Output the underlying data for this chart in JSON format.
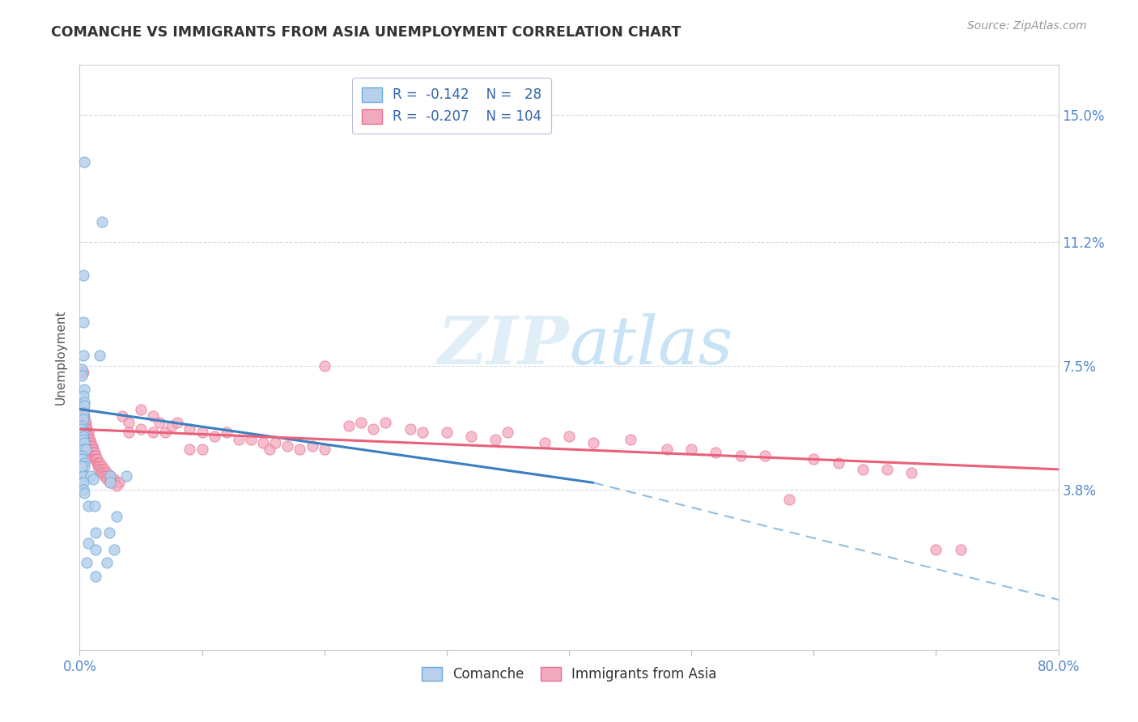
{
  "title": "COMANCHE VS IMMIGRANTS FROM ASIA UNEMPLOYMENT CORRELATION CHART",
  "source": "Source: ZipAtlas.com",
  "ylabel": "Unemployment",
  "ytick_labels": [
    "15.0%",
    "11.2%",
    "7.5%",
    "3.8%"
  ],
  "ytick_values": [
    0.15,
    0.112,
    0.075,
    0.038
  ],
  "xmin": 0.0,
  "xmax": 0.8,
  "ymin": -0.01,
  "ymax": 0.165,
  "comanche_color": "#b8d0eb",
  "immigrants_color": "#f2aabe",
  "trendline_blue": "#3a7fc1",
  "trendline_pink": "#e8607a",
  "trendline_blue_dashed": "#90bfe0",
  "blue_line_x_start": 0.0,
  "blue_line_x_solid_end": 0.42,
  "blue_line_x_end": 0.8,
  "blue_line_y_start": 0.062,
  "blue_line_y_solid_end": 0.04,
  "blue_line_y_end": 0.005,
  "pink_line_x_start": 0.0,
  "pink_line_x_end": 0.8,
  "pink_line_y_start": 0.056,
  "pink_line_y_end": 0.044,
  "comanche_points": [
    [
      0.004,
      0.136
    ],
    [
      0.018,
      0.118
    ],
    [
      0.003,
      0.102
    ],
    [
      0.003,
      0.088
    ],
    [
      0.003,
      0.078
    ],
    [
      0.016,
      0.078
    ],
    [
      0.002,
      0.074
    ],
    [
      0.002,
      0.072
    ],
    [
      0.004,
      0.068
    ],
    [
      0.003,
      0.066
    ],
    [
      0.004,
      0.064
    ],
    [
      0.004,
      0.063
    ],
    [
      0.003,
      0.061
    ],
    [
      0.003,
      0.059
    ],
    [
      0.002,
      0.057
    ],
    [
      0.002,
      0.056
    ],
    [
      0.003,
      0.055
    ],
    [
      0.003,
      0.054
    ],
    [
      0.003,
      0.053
    ],
    [
      0.004,
      0.052
    ],
    [
      0.003,
      0.05
    ],
    [
      0.005,
      0.05
    ],
    [
      0.002,
      0.048
    ],
    [
      0.002,
      0.047
    ],
    [
      0.004,
      0.046
    ],
    [
      0.004,
      0.045
    ],
    [
      0.002,
      0.043
    ],
    [
      0.003,
      0.042
    ],
    [
      0.009,
      0.042
    ],
    [
      0.011,
      0.041
    ],
    [
      0.002,
      0.04
    ],
    [
      0.003,
      0.04
    ],
    [
      0.003,
      0.038
    ],
    [
      0.004,
      0.037
    ],
    [
      0.025,
      0.042
    ],
    [
      0.025,
      0.04
    ],
    [
      0.03,
      0.03
    ],
    [
      0.007,
      0.022
    ],
    [
      0.013,
      0.02
    ],
    [
      0.028,
      0.02
    ],
    [
      0.013,
      0.012
    ],
    [
      0.038,
      0.042
    ],
    [
      0.002,
      0.045
    ],
    [
      0.007,
      0.033
    ],
    [
      0.012,
      0.033
    ],
    [
      0.013,
      0.025
    ],
    [
      0.024,
      0.025
    ],
    [
      0.006,
      0.016
    ],
    [
      0.022,
      0.016
    ]
  ],
  "immigrants_points": [
    [
      0.002,
      0.073
    ],
    [
      0.003,
      0.073
    ],
    [
      0.001,
      0.063
    ],
    [
      0.002,
      0.062
    ],
    [
      0.003,
      0.062
    ],
    [
      0.003,
      0.061
    ],
    [
      0.003,
      0.06
    ],
    [
      0.004,
      0.06
    ],
    [
      0.002,
      0.059
    ],
    [
      0.003,
      0.059
    ],
    [
      0.004,
      0.059
    ],
    [
      0.004,
      0.058
    ],
    [
      0.005,
      0.058
    ],
    [
      0.003,
      0.057
    ],
    [
      0.004,
      0.057
    ],
    [
      0.005,
      0.057
    ],
    [
      0.004,
      0.056
    ],
    [
      0.005,
      0.056
    ],
    [
      0.006,
      0.056
    ],
    [
      0.005,
      0.055
    ],
    [
      0.006,
      0.055
    ],
    [
      0.007,
      0.055
    ],
    [
      0.005,
      0.054
    ],
    [
      0.006,
      0.054
    ],
    [
      0.007,
      0.054
    ],
    [
      0.006,
      0.053
    ],
    [
      0.007,
      0.053
    ],
    [
      0.008,
      0.053
    ],
    [
      0.007,
      0.052
    ],
    [
      0.008,
      0.052
    ],
    [
      0.009,
      0.052
    ],
    [
      0.008,
      0.051
    ],
    [
      0.009,
      0.051
    ],
    [
      0.01,
      0.051
    ],
    [
      0.009,
      0.05
    ],
    [
      0.01,
      0.05
    ],
    [
      0.011,
      0.05
    ],
    [
      0.01,
      0.049
    ],
    [
      0.011,
      0.049
    ],
    [
      0.012,
      0.049
    ],
    [
      0.011,
      0.048
    ],
    [
      0.012,
      0.048
    ],
    [
      0.013,
      0.048
    ],
    [
      0.012,
      0.047
    ],
    [
      0.013,
      0.047
    ],
    [
      0.014,
      0.047
    ],
    [
      0.014,
      0.046
    ],
    [
      0.015,
      0.046
    ],
    [
      0.016,
      0.046
    ],
    [
      0.015,
      0.045
    ],
    [
      0.016,
      0.045
    ],
    [
      0.018,
      0.045
    ],
    [
      0.016,
      0.044
    ],
    [
      0.018,
      0.044
    ],
    [
      0.02,
      0.044
    ],
    [
      0.018,
      0.043
    ],
    [
      0.02,
      0.043
    ],
    [
      0.022,
      0.043
    ],
    [
      0.02,
      0.042
    ],
    [
      0.022,
      0.042
    ],
    [
      0.025,
      0.042
    ],
    [
      0.022,
      0.041
    ],
    [
      0.025,
      0.041
    ],
    [
      0.028,
      0.041
    ],
    [
      0.025,
      0.04
    ],
    [
      0.028,
      0.04
    ],
    [
      0.032,
      0.04
    ],
    [
      0.03,
      0.039
    ],
    [
      0.035,
      0.06
    ],
    [
      0.04,
      0.058
    ],
    [
      0.04,
      0.055
    ],
    [
      0.05,
      0.062
    ],
    [
      0.05,
      0.056
    ],
    [
      0.06,
      0.06
    ],
    [
      0.06,
      0.055
    ],
    [
      0.065,
      0.058
    ],
    [
      0.07,
      0.055
    ],
    [
      0.075,
      0.057
    ],
    [
      0.08,
      0.058
    ],
    [
      0.09,
      0.056
    ],
    [
      0.09,
      0.05
    ],
    [
      0.1,
      0.055
    ],
    [
      0.1,
      0.05
    ],
    [
      0.11,
      0.054
    ],
    [
      0.12,
      0.055
    ],
    [
      0.13,
      0.053
    ],
    [
      0.14,
      0.053
    ],
    [
      0.15,
      0.052
    ],
    [
      0.155,
      0.05
    ],
    [
      0.16,
      0.052
    ],
    [
      0.17,
      0.051
    ],
    [
      0.18,
      0.05
    ],
    [
      0.19,
      0.051
    ],
    [
      0.2,
      0.05
    ],
    [
      0.2,
      0.075
    ],
    [
      0.22,
      0.057
    ],
    [
      0.23,
      0.058
    ],
    [
      0.24,
      0.056
    ],
    [
      0.25,
      0.058
    ],
    [
      0.27,
      0.056
    ],
    [
      0.28,
      0.055
    ],
    [
      0.3,
      0.055
    ],
    [
      0.32,
      0.054
    ],
    [
      0.34,
      0.053
    ],
    [
      0.35,
      0.055
    ],
    [
      0.38,
      0.052
    ],
    [
      0.4,
      0.054
    ],
    [
      0.42,
      0.052
    ],
    [
      0.45,
      0.053
    ],
    [
      0.48,
      0.05
    ],
    [
      0.5,
      0.05
    ],
    [
      0.52,
      0.049
    ],
    [
      0.54,
      0.048
    ],
    [
      0.56,
      0.048
    ],
    [
      0.58,
      0.035
    ],
    [
      0.6,
      0.047
    ],
    [
      0.62,
      0.046
    ],
    [
      0.64,
      0.044
    ],
    [
      0.66,
      0.044
    ],
    [
      0.68,
      0.043
    ],
    [
      0.7,
      0.02
    ],
    [
      0.72,
      0.02
    ]
  ]
}
